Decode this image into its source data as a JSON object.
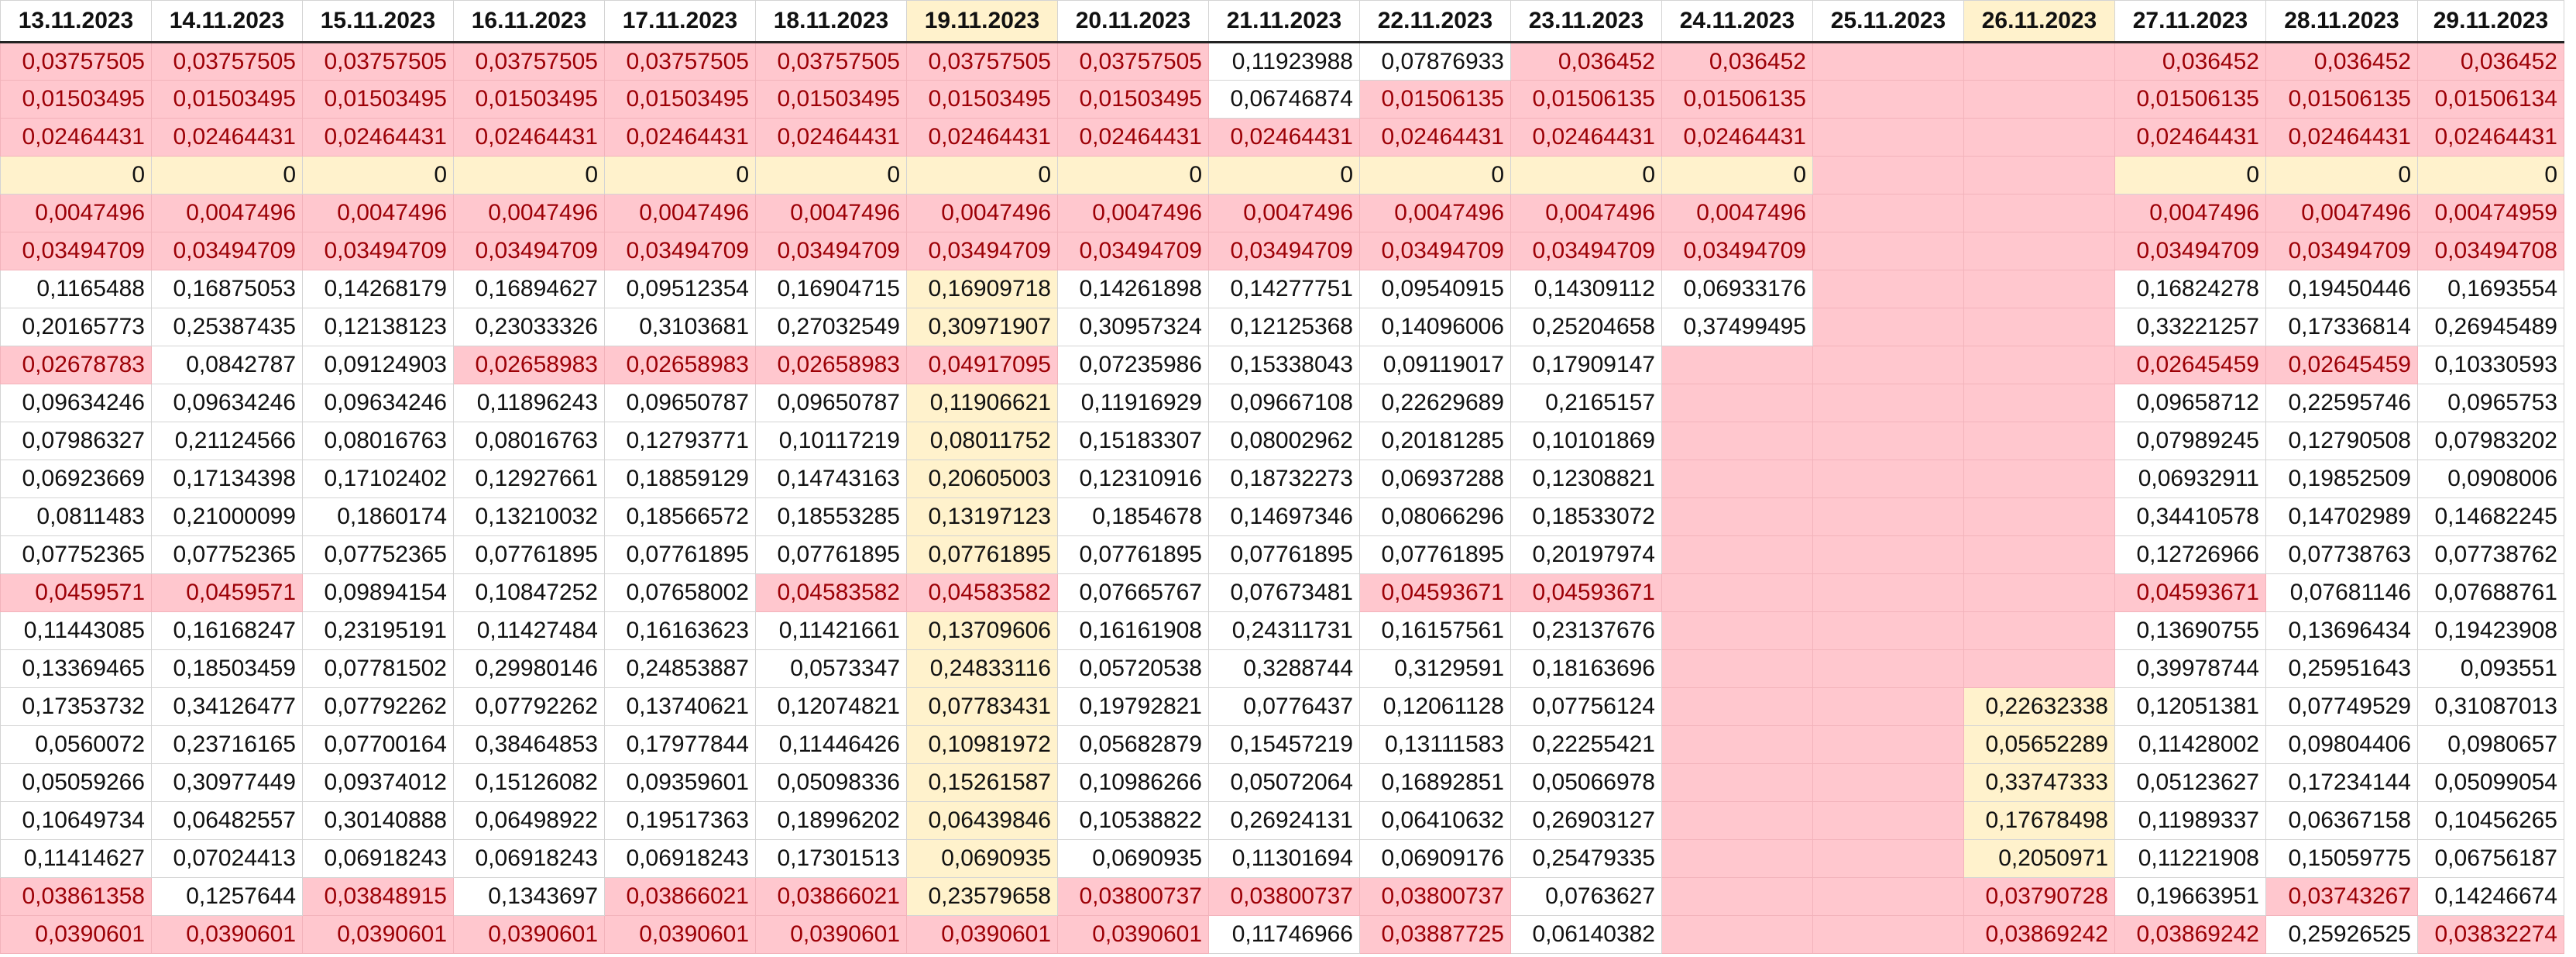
{
  "theme": {
    "bad_fill": "#ffc7ce",
    "bad_text": "#9c0006",
    "weekend_fill": "#fff2cc"
  },
  "sheet": {
    "weekend_columns": [
      6,
      13
    ],
    "headers": [
      "13.11.2023",
      "14.11.2023",
      "15.11.2023",
      "16.11.2023",
      "17.11.2023",
      "18.11.2023",
      "19.11.2023",
      "20.11.2023",
      "21.11.2023",
      "22.11.2023",
      "23.11.2023",
      "24.11.2023",
      "25.11.2023",
      "26.11.2023",
      "27.11.2023",
      "28.11.2023",
      "29.11.2023"
    ],
    "rows": [
      {
        "values": [
          "0,03757505",
          "0,03757505",
          "0,03757505",
          "0,03757505",
          "0,03757505",
          "0,03757505",
          "0,03757505",
          "0,03757505",
          "0,11923988",
          "0,07876933",
          "0,036452",
          "0,036452",
          "",
          "",
          "0,036452",
          "0,036452",
          "0,036452"
        ],
        "flags": [
          1,
          1,
          1,
          1,
          1,
          1,
          1,
          1,
          0,
          0,
          1,
          1,
          1,
          1,
          1,
          1,
          1
        ]
      },
      {
        "values": [
          "0,01503495",
          "0,01503495",
          "0,01503495",
          "0,01503495",
          "0,01503495",
          "0,01503495",
          "0,01503495",
          "0,01503495",
          "0,06746874",
          "0,01506135",
          "0,01506135",
          "0,01506135",
          "",
          "",
          "0,01506135",
          "0,01506135",
          "0,01506134"
        ],
        "flags": [
          1,
          1,
          1,
          1,
          1,
          1,
          1,
          1,
          0,
          1,
          1,
          1,
          1,
          1,
          1,
          1,
          1
        ]
      },
      {
        "values": [
          "0,02464431",
          "0,02464431",
          "0,02464431",
          "0,02464431",
          "0,02464431",
          "0,02464431",
          "0,02464431",
          "0,02464431",
          "0,02464431",
          "0,02464431",
          "0,02464431",
          "0,02464431",
          "",
          "",
          "0,02464431",
          "0,02464431",
          "0,02464431"
        ],
        "flags": [
          1,
          1,
          1,
          1,
          1,
          1,
          1,
          1,
          1,
          1,
          1,
          1,
          1,
          1,
          1,
          1,
          1
        ]
      },
      {
        "values": [
          "0",
          "0",
          "0",
          "0",
          "0",
          "0",
          "0",
          "0",
          "0",
          "0",
          "0",
          "0",
          "",
          "",
          "0",
          "0",
          "0"
        ],
        "flags": [
          2,
          2,
          2,
          2,
          2,
          2,
          2,
          2,
          2,
          2,
          2,
          2,
          1,
          1,
          2,
          2,
          2
        ]
      },
      {
        "values": [
          "0,0047496",
          "0,0047496",
          "0,0047496",
          "0,0047496",
          "0,0047496",
          "0,0047496",
          "0,0047496",
          "0,0047496",
          "0,0047496",
          "0,0047496",
          "0,0047496",
          "0,0047496",
          "",
          "",
          "0,0047496",
          "0,0047496",
          "0,00474959"
        ],
        "flags": [
          1,
          1,
          1,
          1,
          1,
          1,
          1,
          1,
          1,
          1,
          1,
          1,
          1,
          1,
          1,
          1,
          1
        ]
      },
      {
        "values": [
          "0,03494709",
          "0,03494709",
          "0,03494709",
          "0,03494709",
          "0,03494709",
          "0,03494709",
          "0,03494709",
          "0,03494709",
          "0,03494709",
          "0,03494709",
          "0,03494709",
          "0,03494709",
          "",
          "",
          "0,03494709",
          "0,03494709",
          "0,03494708"
        ],
        "flags": [
          1,
          1,
          1,
          1,
          1,
          1,
          1,
          1,
          1,
          1,
          1,
          1,
          1,
          1,
          1,
          1,
          1
        ]
      },
      {
        "values": [
          "0,1165488",
          "0,16875053",
          "0,14268179",
          "0,16894627",
          "0,09512354",
          "0,16904715",
          "0,16909718",
          "0,14261898",
          "0,14277751",
          "0,09540915",
          "0,14309112",
          "0,06933176",
          "",
          "",
          "0,16824278",
          "0,19450446",
          "0,1693554"
        ],
        "flags": [
          0,
          0,
          0,
          0,
          0,
          0,
          0,
          0,
          0,
          0,
          0,
          0,
          1,
          1,
          0,
          0,
          0
        ]
      },
      {
        "values": [
          "0,20165773",
          "0,25387435",
          "0,12138123",
          "0,23033326",
          "0,3103681",
          "0,27032549",
          "0,30971907",
          "0,30957324",
          "0,12125368",
          "0,14096006",
          "0,25204658",
          "0,37499495",
          "",
          "",
          "0,33221257",
          "0,17336814",
          "0,26945489"
        ],
        "flags": [
          0,
          0,
          0,
          0,
          0,
          0,
          0,
          0,
          0,
          0,
          0,
          0,
          1,
          1,
          0,
          0,
          0
        ]
      },
      {
        "values": [
          "0,02678783",
          "0,0842787",
          "0,09124903",
          "0,02658983",
          "0,02658983",
          "0,02658983",
          "0,04917095",
          "0,07235986",
          "0,15338043",
          "0,09119017",
          "0,17909147",
          "",
          "",
          "",
          "0,02645459",
          "0,02645459",
          "0,10330593"
        ],
        "flags": [
          1,
          0,
          0,
          1,
          1,
          1,
          1,
          0,
          0,
          0,
          0,
          1,
          1,
          1,
          1,
          1,
          0
        ]
      },
      {
        "values": [
          "0,09634246",
          "0,09634246",
          "0,09634246",
          "0,11896243",
          "0,09650787",
          "0,09650787",
          "0,11906621",
          "0,11916929",
          "0,09667108",
          "0,22629689",
          "0,2165157",
          "",
          "",
          "",
          "0,09658712",
          "0,22595746",
          "0,0965753"
        ],
        "flags": [
          0,
          0,
          0,
          0,
          0,
          0,
          0,
          0,
          0,
          0,
          0,
          1,
          1,
          1,
          0,
          0,
          0
        ]
      },
      {
        "values": [
          "0,07986327",
          "0,21124566",
          "0,08016763",
          "0,08016763",
          "0,12793771",
          "0,10117219",
          "0,08011752",
          "0,15183307",
          "0,08002962",
          "0,20181285",
          "0,10101869",
          "",
          "",
          "",
          "0,07989245",
          "0,12790508",
          "0,07983202"
        ],
        "flags": [
          0,
          0,
          0,
          0,
          0,
          0,
          0,
          0,
          0,
          0,
          0,
          1,
          1,
          1,
          0,
          0,
          0
        ]
      },
      {
        "values": [
          "0,06923669",
          "0,17134398",
          "0,17102402",
          "0,12927661",
          "0,18859129",
          "0,14743163",
          "0,20605003",
          "0,12310916",
          "0,18732273",
          "0,06937288",
          "0,12308821",
          "",
          "",
          "",
          "0,06932911",
          "0,19852509",
          "0,0908006"
        ],
        "flags": [
          0,
          0,
          0,
          0,
          0,
          0,
          0,
          0,
          0,
          0,
          0,
          1,
          1,
          1,
          0,
          0,
          0
        ]
      },
      {
        "values": [
          "0,0811483",
          "0,21000099",
          "0,1860174",
          "0,13210032",
          "0,18566572",
          "0,18553285",
          "0,13197123",
          "0,1854678",
          "0,14697346",
          "0,08066296",
          "0,18533072",
          "",
          "",
          "",
          "0,34410578",
          "0,14702989",
          "0,14682245"
        ],
        "flags": [
          0,
          0,
          0,
          0,
          0,
          0,
          0,
          0,
          0,
          0,
          0,
          1,
          1,
          1,
          0,
          0,
          0
        ]
      },
      {
        "values": [
          "0,07752365",
          "0,07752365",
          "0,07752365",
          "0,07761895",
          "0,07761895",
          "0,07761895",
          "0,07761895",
          "0,07761895",
          "0,07761895",
          "0,07761895",
          "0,20197974",
          "",
          "",
          "",
          "0,12726966",
          "0,07738763",
          "0,07738762"
        ],
        "flags": [
          0,
          0,
          0,
          0,
          0,
          0,
          0,
          0,
          0,
          0,
          0,
          1,
          1,
          1,
          0,
          0,
          0
        ]
      },
      {
        "values": [
          "0,0459571",
          "0,0459571",
          "0,09894154",
          "0,10847252",
          "0,07658002",
          "0,04583582",
          "0,04583582",
          "0,07665767",
          "0,07673481",
          "0,04593671",
          "0,04593671",
          "",
          "",
          "",
          "0,04593671",
          "0,07681146",
          "0,07688761"
        ],
        "flags": [
          1,
          1,
          0,
          0,
          0,
          1,
          1,
          0,
          0,
          1,
          1,
          1,
          1,
          1,
          1,
          0,
          0
        ]
      },
      {
        "values": [
          "0,11443085",
          "0,16168247",
          "0,23195191",
          "0,11427484",
          "0,16163623",
          "0,11421661",
          "0,13709606",
          "0,16161908",
          "0,24311731",
          "0,16157561",
          "0,23137676",
          "",
          "",
          "",
          "0,13690755",
          "0,13696434",
          "0,19423908"
        ],
        "flags": [
          0,
          0,
          0,
          0,
          0,
          0,
          0,
          0,
          0,
          0,
          0,
          1,
          1,
          1,
          0,
          0,
          0
        ]
      },
      {
        "values": [
          "0,13369465",
          "0,18503459",
          "0,07781502",
          "0,29980146",
          "0,24853887",
          "0,0573347",
          "0,24833116",
          "0,05720538",
          "0,3288744",
          "0,3129591",
          "0,18163696",
          "",
          "",
          "",
          "0,39978744",
          "0,25951643",
          "0,093551"
        ],
        "flags": [
          0,
          0,
          0,
          0,
          0,
          0,
          0,
          0,
          0,
          0,
          0,
          1,
          1,
          1,
          0,
          0,
          0
        ]
      },
      {
        "values": [
          "0,17353732",
          "0,34126477",
          "0,07792262",
          "0,07792262",
          "0,13740621",
          "0,12074821",
          "0,07783431",
          "0,19792821",
          "0,0776437",
          "0,12061128",
          "0,07756124",
          "",
          "",
          "0,22632338",
          "0,12051381",
          "0,07749529",
          "0,31087013"
        ],
        "flags": [
          0,
          0,
          0,
          0,
          0,
          0,
          0,
          0,
          0,
          0,
          0,
          1,
          1,
          0,
          0,
          0,
          0
        ]
      },
      {
        "values": [
          "0,0560072",
          "0,23716165",
          "0,07700164",
          "0,38464853",
          "0,17977844",
          "0,11446426",
          "0,10981972",
          "0,05682879",
          "0,15457219",
          "0,13111583",
          "0,22255421",
          "",
          "",
          "0,05652289",
          "0,11428002",
          "0,09804406",
          "0,0980657"
        ],
        "flags": [
          0,
          0,
          0,
          0,
          0,
          0,
          0,
          0,
          0,
          0,
          0,
          1,
          1,
          0,
          0,
          0,
          0
        ]
      },
      {
        "values": [
          "0,05059266",
          "0,30977449",
          "0,09374012",
          "0,15126082",
          "0,09359601",
          "0,05098336",
          "0,15261587",
          "0,10986266",
          "0,05072064",
          "0,16892851",
          "0,05066978",
          "",
          "",
          "0,33747333",
          "0,05123627",
          "0,17234144",
          "0,05099054"
        ],
        "flags": [
          0,
          0,
          0,
          0,
          0,
          0,
          0,
          0,
          0,
          0,
          0,
          1,
          1,
          0,
          0,
          0,
          0
        ]
      },
      {
        "values": [
          "0,10649734",
          "0,06482557",
          "0,30140888",
          "0,06498922",
          "0,19517363",
          "0,18996202",
          "0,06439846",
          "0,10538822",
          "0,26924131",
          "0,06410632",
          "0,26903127",
          "",
          "",
          "0,17678498",
          "0,11989337",
          "0,06367158",
          "0,10456265"
        ],
        "flags": [
          0,
          0,
          0,
          0,
          0,
          0,
          0,
          0,
          0,
          0,
          0,
          1,
          1,
          0,
          0,
          0,
          0
        ]
      },
      {
        "values": [
          "0,11414627",
          "0,07024413",
          "0,06918243",
          "0,06918243",
          "0,06918243",
          "0,17301513",
          "0,0690935",
          "0,0690935",
          "0,11301694",
          "0,06909176",
          "0,25479335",
          "",
          "",
          "0,2050971",
          "0,11221908",
          "0,15059775",
          "0,06756187"
        ],
        "flags": [
          0,
          0,
          0,
          0,
          0,
          0,
          0,
          0,
          0,
          0,
          0,
          1,
          1,
          0,
          0,
          0,
          0
        ]
      },
      {
        "values": [
          "0,03861358",
          "0,1257644",
          "0,03848915",
          "0,1343697",
          "0,03866021",
          "0,03866021",
          "0,23579658",
          "0,03800737",
          "0,03800737",
          "0,03800737",
          "0,0763627",
          "",
          "",
          "0,03790728",
          "0,19663951",
          "0,03743267",
          "0,14246674"
        ],
        "flags": [
          1,
          0,
          1,
          0,
          1,
          1,
          0,
          1,
          1,
          1,
          0,
          1,
          1,
          1,
          0,
          1,
          0
        ]
      },
      {
        "values": [
          "0,0390601",
          "0,0390601",
          "0,0390601",
          "0,0390601",
          "0,0390601",
          "0,0390601",
          "0,0390601",
          "0,0390601",
          "0,11746966",
          "0,03887725",
          "0,06140382",
          "",
          "",
          "0,03869242",
          "0,03869242",
          "0,25926525",
          "0,03832274"
        ],
        "flags": [
          1,
          1,
          1,
          1,
          1,
          1,
          1,
          1,
          0,
          1,
          0,
          1,
          1,
          1,
          1,
          0,
          1
        ]
      }
    ]
  }
}
